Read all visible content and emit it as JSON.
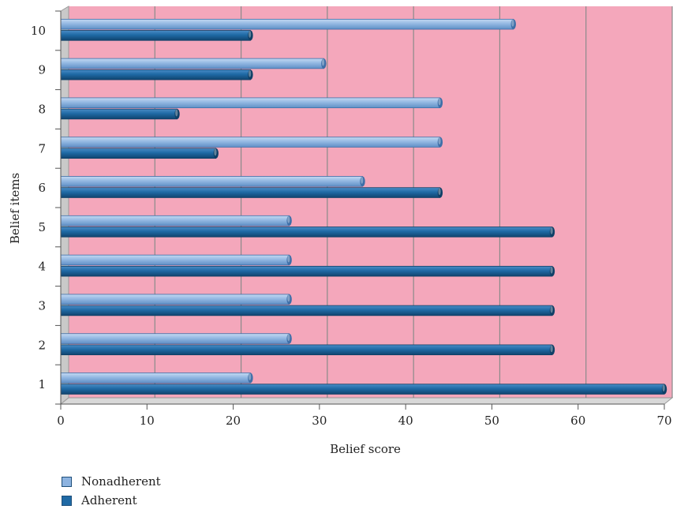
{
  "chart_data": {
    "type": "bar",
    "orientation": "horizontal",
    "categories": [
      "1",
      "2",
      "3",
      "4",
      "5",
      "6",
      "7",
      "8",
      "9",
      "10"
    ],
    "series": [
      {
        "name": "Nonadherent",
        "color": "#8db3e0",
        "values": [
          22,
          26.5,
          26.5,
          26.5,
          26.5,
          35,
          44,
          44,
          30.5,
          52.5
        ]
      },
      {
        "name": "Adherent",
        "color": "#1f6aa5",
        "values": [
          70,
          57,
          57,
          57,
          57,
          44,
          18,
          13.5,
          22,
          22
        ]
      }
    ],
    "xlabel": "Belief score",
    "ylabel": "Belief items",
    "xlim": [
      0,
      70
    ],
    "xticks": [
      "0",
      "10",
      "20",
      "30",
      "40",
      "50",
      "60",
      "70"
    ],
    "plot_background": "#f4a7bb",
    "grid": true,
    "legend_position": "bottom-left"
  }
}
